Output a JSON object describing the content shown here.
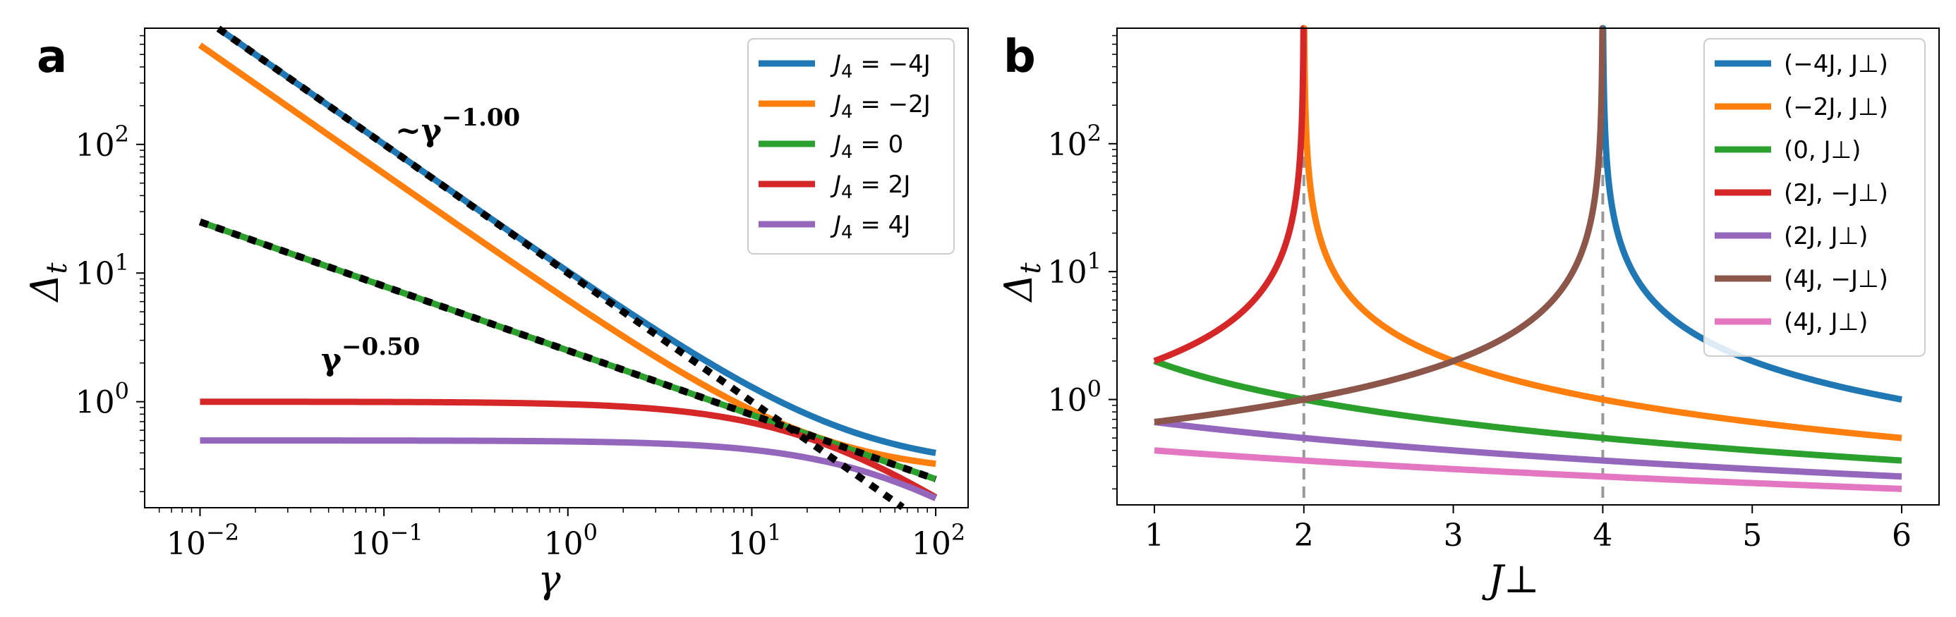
{
  "chart_data": [
    {
      "panel": "a",
      "type": "line",
      "xscale": "log",
      "yscale": "log",
      "xlabel": "γ",
      "ylabel": "Δ_t",
      "xlim": [
        0.005,
        150
      ],
      "ylim": [
        0.15,
        800
      ],
      "xticks": [
        {
          "value": 0.01,
          "base": "10",
          "exp": "−2"
        },
        {
          "value": 0.1,
          "base": "10",
          "exp": "−1"
        },
        {
          "value": 1,
          "base": "10",
          "exp": "0"
        },
        {
          "value": 10,
          "base": "10",
          "exp": "1"
        },
        {
          "value": 100,
          "base": "10",
          "exp": "2"
        }
      ],
      "yticks": [
        {
          "value": 1,
          "base": "10",
          "exp": "0"
        },
        {
          "value": 10,
          "base": "10",
          "exp": "1"
        },
        {
          "value": 100,
          "base": "10",
          "exp": "2"
        }
      ],
      "legend_position": "top-right",
      "series": [
        {
          "name": "J4 = −4J",
          "label_main": "J",
          "label_sub": "4",
          "label_rest": " = −4J",
          "color": "#1f77b4",
          "model": "decay",
          "A": 10.0,
          "n": 1.0,
          "c": 0.3
        },
        {
          "name": "J4 = −2J",
          "label_main": "J",
          "label_sub": "4",
          "label_rest": " = −2J",
          "color": "#ff7f0e",
          "model": "decay",
          "A": 5.9,
          "n": 1.0,
          "c": 0.27
        },
        {
          "name": "J4 = 0",
          "label_main": "J",
          "label_sub": "4",
          "label_rest": " = 0",
          "color": "#2ca02c",
          "model": "decay",
          "A": 2.5,
          "n": 0.5,
          "c": 0.0
        },
        {
          "name": "J4 = 2J",
          "label_main": "J",
          "label_sub": "4",
          "label_rest": " = 2J",
          "color": "#d62728",
          "model": "plateau",
          "A": 1.0,
          "g0": 22
        },
        {
          "name": "J4 = 4J",
          "label_main": "J",
          "label_sub": "4",
          "label_rest": " = 4J",
          "color": "#9467bd",
          "model": "plateau",
          "A": 0.5,
          "g0": 55
        }
      ],
      "fits": [
        {
          "name": "fit ~γ^−1.00",
          "A": 10.0,
          "n": 1.0,
          "x_range": [
            0.01,
            100
          ]
        },
        {
          "name": "fit γ^−0.50",
          "A": 2.5,
          "n": 0.5,
          "x_range": [
            0.01,
            100
          ]
        }
      ],
      "annotations": [
        {
          "text_main": "~γ",
          "text_exp": "−1.00"
        },
        {
          "text_main": "γ",
          "text_exp": "−0.50"
        }
      ]
    },
    {
      "panel": "b",
      "type": "line",
      "xscale": "linear",
      "yscale": "log",
      "xlabel": "J⊥",
      "ylabel": "Δ_t",
      "xlim": [
        0.75,
        6.25
      ],
      "ylim": [
        0.15,
        800
      ],
      "xticks": [
        {
          "value": 1,
          "label": "1"
        },
        {
          "value": 2,
          "label": "2"
        },
        {
          "value": 3,
          "label": "3"
        },
        {
          "value": 4,
          "label": "4"
        },
        {
          "value": 5,
          "label": "5"
        },
        {
          "value": 6,
          "label": "6"
        }
      ],
      "yticks": [
        {
          "value": 1,
          "base": "10",
          "exp": "0"
        },
        {
          "value": 10,
          "base": "10",
          "exp": "1"
        },
        {
          "value": 100,
          "base": "10",
          "exp": "2"
        }
      ],
      "vlines": [
        2,
        4
      ],
      "legend_position": "top-right",
      "series": [
        {
          "name": "(−4J,J⊥)",
          "label": "(−4J, J⊥)",
          "color": "#1f77b4",
          "model": "pole",
          "pole": 4,
          "side": "right",
          "x_range": [
            4,
            6
          ]
        },
        {
          "name": "(−2J,J⊥)",
          "label": "(−2J, J⊥)",
          "color": "#ff7f0e",
          "model": "pole",
          "pole": 2,
          "side": "right",
          "x_range": [
            2,
            6
          ]
        },
        {
          "name": "(0,J⊥)",
          "label": "(0, J⊥)",
          "color": "#2ca02c",
          "model": "inverse",
          "A": 2,
          "x_range": [
            1,
            6
          ]
        },
        {
          "name": "(2J,−J⊥)",
          "label": "(2J, −J⊥)",
          "color": "#d62728",
          "model": "pole",
          "pole": 2,
          "side": "left",
          "x_range": [
            1,
            2
          ]
        },
        {
          "name": "(2J,J⊥)",
          "label": "(2J, J⊥)",
          "color": "#9467bd",
          "model": "shift",
          "s": 2,
          "x_range": [
            1,
            6
          ]
        },
        {
          "name": "(4J,−J⊥)",
          "label": "(4J, −J⊥)",
          "color": "#8c564b",
          "model": "pole",
          "pole": 4,
          "side": "left",
          "x_range": [
            1,
            4
          ]
        },
        {
          "name": "(4J,J⊥)",
          "label": "(4J, J⊥)",
          "color": "#e377c2",
          "model": "shift",
          "s": 4,
          "x_range": [
            1,
            6
          ]
        }
      ]
    }
  ],
  "panel_labels": [
    "a",
    "b"
  ]
}
